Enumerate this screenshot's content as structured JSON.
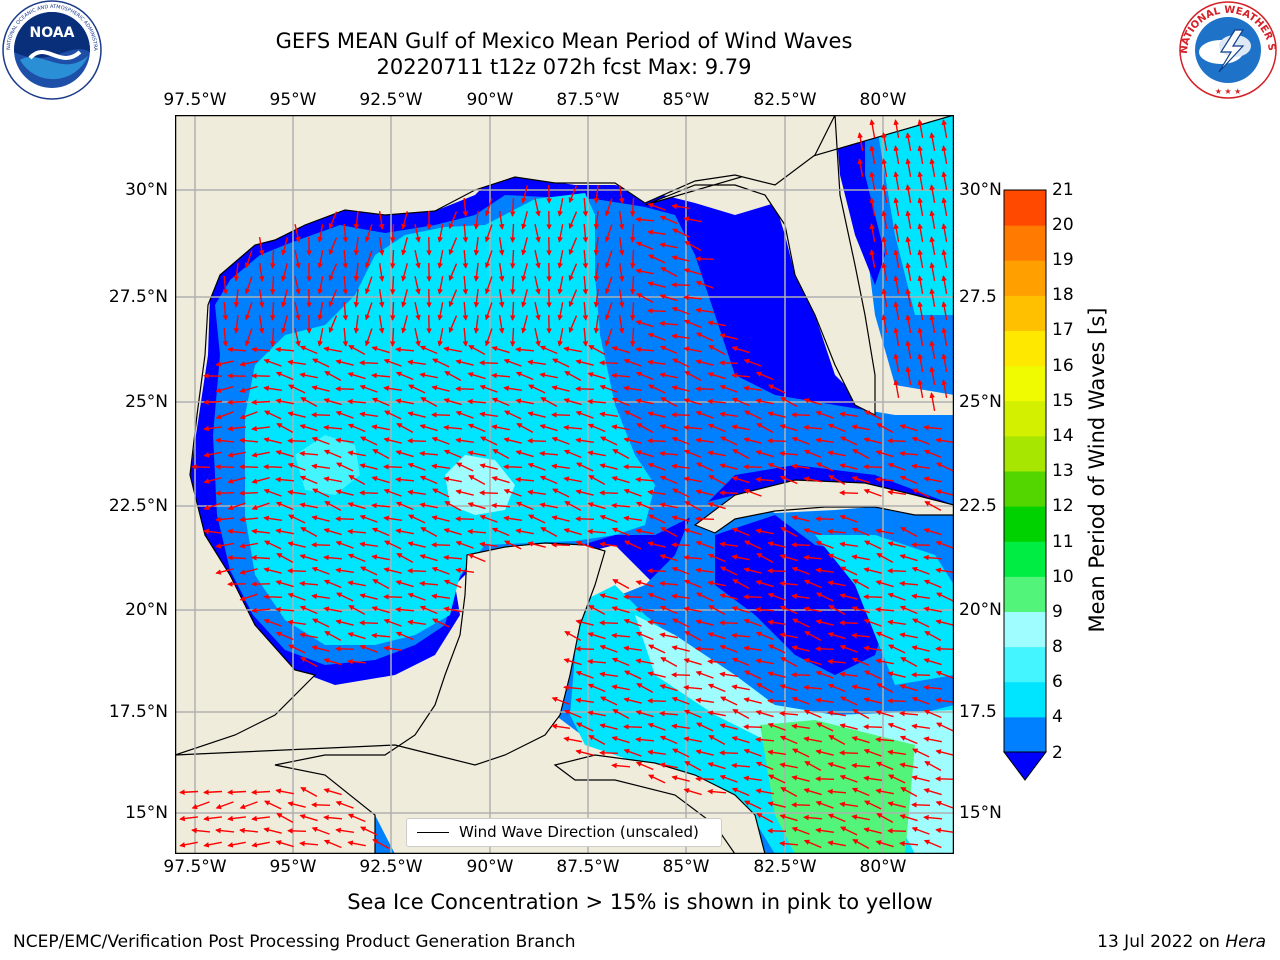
{
  "header": {
    "title_line1": "GEFS MEAN Gulf of Mexico Mean Period of Wind Waves",
    "title_line2": "20220711 t12z 072h fcst   Max: 9.79"
  },
  "logos": {
    "left": "NOAA",
    "left_ring_text": "NATIONAL OCEANIC AND ATMOSPHERIC ADMINISTRATION · U.S. DEPARTMENT OF COMMERCE",
    "right_ring_text": "NATIONAL WEATHER SERVICE"
  },
  "map": {
    "lon_labels": [
      "97.5°W",
      "95°W",
      "92.5°W",
      "90°W",
      "87.5°W",
      "85°W",
      "82.5°W",
      "80°W"
    ],
    "lat_labels_left": [
      "30°N",
      "27.5°N",
      "25°N",
      "22.5°N",
      "20°N",
      "17.5°N",
      "15°N"
    ],
    "lat_labels_right": [
      "30°N",
      "27.5",
      "25°N",
      "22.5",
      "20°N",
      "17.5",
      "15°N"
    ],
    "extent": {
      "lon_min": -98.0,
      "lon_max": -78.2,
      "lat_min": 14.0,
      "lat_max": 31.8
    },
    "land_color": "#efecdc",
    "arrow_color": "#ff0000",
    "legend_label": "Wind Wave Direction (unscaled)"
  },
  "colorbar": {
    "label": "Mean Period of Wind Waves [s]",
    "ticks": [
      "2",
      "4",
      "6",
      "8",
      "9",
      "10",
      "11",
      "12",
      "13",
      "14",
      "15",
      "16",
      "17",
      "18",
      "19",
      "20",
      "21"
    ],
    "colors": [
      "#0080ff",
      "#00e5ff",
      "#44f4ff",
      "#9ffcff",
      "#52f47a",
      "#00ee44",
      "#00d200",
      "#53d500",
      "#a6e600",
      "#d2f000",
      "#f0fa00",
      "#ffe800",
      "#ffc000",
      "#ffa000",
      "#ff7a00",
      "#ff4800",
      "#ff0000"
    ],
    "under_color": "#0000ff"
  },
  "notes": {
    "sea_ice": "Sea Ice Concentration > 15% is shown in pink to yellow"
  },
  "footer": {
    "left": "NCEP/EMC/Verification Post Processing Product Generation Branch",
    "right_date": "13 Jul 2022 on ",
    "right_host": "Hera"
  }
}
